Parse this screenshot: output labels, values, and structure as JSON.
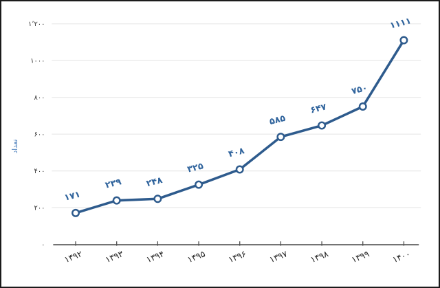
{
  "chart_data": {
    "type": "line",
    "title": "",
    "xlabel": "",
    "ylabel": "تعداد",
    "categories": [
      1392,
      1393,
      1394,
      1395,
      1396,
      1397,
      1398,
      1399,
      1400
    ],
    "categories_fa": [
      "۱۳۹۲",
      "۱۳۹۳",
      "۱۳۹۴",
      "۱۳۹۵",
      "۱۳۹۶",
      "۱۳۹۷",
      "۱۳۹۸",
      "۱۳۹۹",
      "۱۴۰۰"
    ],
    "series": [
      {
        "name": "تعداد",
        "values": [
          171,
          239,
          248,
          325,
          408,
          585,
          647,
          750,
          1111
        ],
        "value_labels_fa": [
          "۱۷۱",
          "۲۳۹",
          "۲۴۸",
          "۳۲۵",
          "۴۰۸",
          "۵۸۵",
          "۶۴۷",
          "۷۵۰",
          "۱۱۱۱"
        ]
      }
    ],
    "y_ticks": [
      0,
      200,
      400,
      600,
      800,
      1000,
      1200
    ],
    "y_tick_labels_fa": [
      "۰",
      "۲۰۰",
      "۴۰۰",
      "۶۰۰",
      "۸۰۰",
      "۱۰۰۰",
      "۱٬۲۰۰"
    ],
    "ylim": [
      0,
      1260
    ],
    "grid": "horizontal",
    "legend": "none",
    "marker": "open-circle",
    "colors": {
      "line": "#2e5b8d",
      "marker_fill": "#ffffff",
      "marker_stroke": "#2e5b8d",
      "data_label": "#2f639c",
      "axis": "#4d4d4d",
      "gridline": "#ebebeb",
      "y_tick_label": "#333333",
      "x_tick_label": "#1f1f1f",
      "ylabel": "#4a7ebb",
      "frame_border": "#1b1b1b",
      "background": "#ffffff"
    }
  }
}
